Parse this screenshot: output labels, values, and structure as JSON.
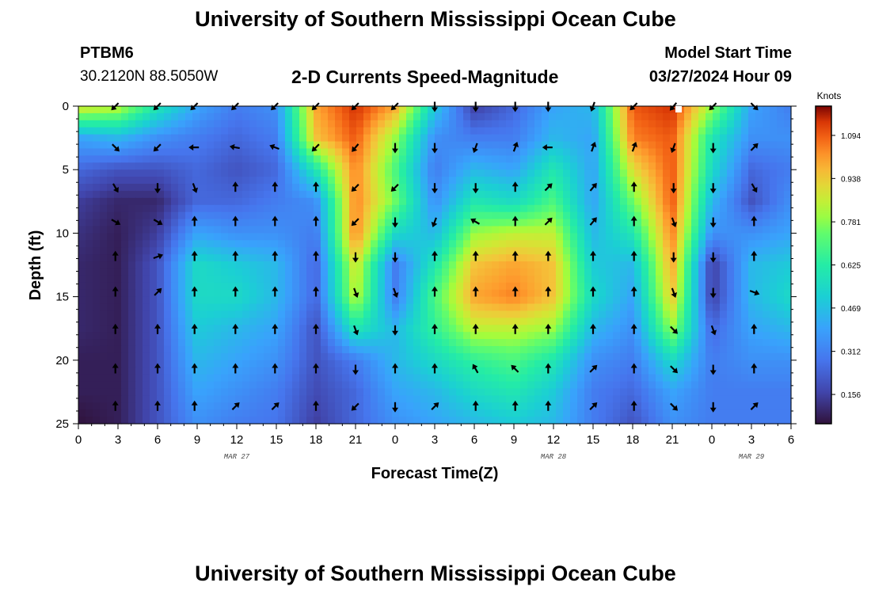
{
  "header": {
    "title": "University of Southern Mississippi Ocean Cube",
    "station_id": "PTBM6",
    "coordinates": "30.2120N  88.5050W",
    "chart_title": "2-D Currents Speed-Magnitude",
    "model_start_label": "Model Start Time",
    "model_start_value": "03/27/2024 Hour 09"
  },
  "footer": {
    "title": "University of Southern Mississippi Ocean Cube"
  },
  "chart_data": {
    "type": "heatmap",
    "title": "2-D Currents Speed-Magnitude",
    "xlabel": "Forecast Time(Z)",
    "ylabel": "Depth (ft)",
    "x_ticks": [
      "0",
      "3",
      "6",
      "9",
      "12",
      "15",
      "18",
      "21",
      "0",
      "3",
      "6",
      "9",
      "12",
      "15",
      "18",
      "21",
      "0",
      "3",
      "6"
    ],
    "x_range_hours": [
      0,
      54
    ],
    "date_labels": [
      {
        "label": "MAR 27",
        "hour": 12
      },
      {
        "label": "MAR 28",
        "hour": 36
      },
      {
        "label": "MAR 29",
        "hour": 51
      }
    ],
    "y_ticks": [
      0,
      5,
      10,
      15,
      20,
      25
    ],
    "ylim": [
      0,
      25
    ],
    "y_inverted": true,
    "colorbar": {
      "title": "Knots",
      "ticks": [
        "1.094",
        "0.938",
        "0.781",
        "0.625",
        "0.469",
        "0.312",
        "0.156"
      ],
      "range": [
        0.05,
        1.2
      ]
    },
    "depths": [
      0,
      2.5,
      5,
      7.5,
      10,
      12.5,
      15,
      17.5,
      20,
      22.5,
      25
    ],
    "time_hours": [
      0,
      3,
      6,
      9,
      12,
      15,
      18,
      21,
      24,
      27,
      30,
      33,
      36,
      39,
      42,
      45,
      48,
      51,
      54
    ],
    "speed_knots": [
      [
        0.9,
        0.85,
        0.6,
        0.4,
        0.3,
        0.35,
        1.0,
        1.15,
        1.0,
        0.5,
        0.15,
        0.25,
        0.4,
        0.45,
        1.1,
        1.15,
        0.8,
        0.4,
        0.3
      ],
      [
        0.4,
        0.45,
        0.35,
        0.3,
        0.25,
        0.3,
        0.95,
        1.1,
        0.8,
        0.35,
        0.3,
        0.3,
        0.45,
        0.4,
        1.05,
        1.1,
        0.6,
        0.35,
        0.35
      ],
      [
        0.25,
        0.2,
        0.2,
        0.25,
        0.2,
        0.25,
        0.6,
        1.05,
        0.7,
        0.3,
        0.45,
        0.4,
        0.6,
        0.4,
        0.9,
        1.1,
        0.55,
        0.25,
        0.3
      ],
      [
        0.15,
        0.1,
        0.1,
        0.25,
        0.25,
        0.3,
        0.35,
        1.05,
        0.75,
        0.35,
        0.6,
        0.55,
        0.7,
        0.4,
        0.75,
        1.1,
        0.45,
        0.2,
        0.35
      ],
      [
        0.12,
        0.08,
        0.15,
        0.4,
        0.35,
        0.35,
        0.3,
        1.05,
        0.55,
        0.45,
        0.8,
        0.85,
        0.85,
        0.45,
        0.6,
        1.05,
        0.35,
        0.35,
        0.4
      ],
      [
        0.1,
        0.08,
        0.2,
        0.55,
        0.5,
        0.45,
        0.25,
        0.9,
        0.3,
        0.6,
        0.95,
        1.0,
        0.95,
        0.5,
        0.45,
        1.0,
        0.15,
        0.45,
        0.5
      ],
      [
        0.1,
        0.08,
        0.2,
        0.55,
        0.55,
        0.45,
        0.25,
        0.85,
        0.3,
        0.7,
        1.0,
        1.05,
        0.95,
        0.55,
        0.4,
        0.95,
        0.15,
        0.45,
        0.55
      ],
      [
        0.1,
        0.08,
        0.2,
        0.5,
        0.45,
        0.4,
        0.2,
        0.6,
        0.45,
        0.65,
        0.85,
        0.85,
        0.8,
        0.45,
        0.35,
        0.8,
        0.25,
        0.4,
        0.45
      ],
      [
        0.08,
        0.08,
        0.2,
        0.45,
        0.4,
        0.35,
        0.2,
        0.3,
        0.45,
        0.55,
        0.65,
        0.7,
        0.6,
        0.35,
        0.3,
        0.55,
        0.3,
        0.35,
        0.35
      ],
      [
        0.08,
        0.08,
        0.2,
        0.4,
        0.35,
        0.3,
        0.18,
        0.25,
        0.4,
        0.45,
        0.55,
        0.6,
        0.5,
        0.3,
        0.25,
        0.4,
        0.3,
        0.3,
        0.3
      ],
      [
        0.05,
        0.08,
        0.2,
        0.35,
        0.3,
        0.28,
        0.15,
        0.25,
        0.35,
        0.4,
        0.45,
        0.5,
        0.45,
        0.3,
        0.2,
        0.35,
        0.3,
        0.3,
        0.3
      ]
    ],
    "arrow_depths": [
      0,
      3.25,
      6.4,
      9.1,
      11.85,
      14.65,
      17.6,
      20.7,
      23.65
    ],
    "arrow_hours": [
      2.8,
      6,
      8.8,
      11.9,
      14.9,
      18,
      21,
      24,
      27,
      30.1,
      33.1,
      35.6,
      39,
      42.1,
      45.1,
      48.1,
      51.2
    ],
    "arrow_dir_deg": [
      [
        225,
        225,
        225,
        225,
        225,
        225,
        225,
        225,
        180,
        180,
        180,
        180,
        200,
        225,
        220,
        225,
        135
      ],
      [
        135,
        225,
        270,
        280,
        290,
        225,
        220,
        180,
        180,
        200,
        20,
        270,
        20,
        20,
        200,
        180,
        45
      ],
      [
        150,
        180,
        160,
        0,
        0,
        0,
        225,
        225,
        180,
        180,
        0,
        45,
        40,
        0,
        180,
        180,
        150
      ],
      [
        120,
        120,
        0,
        0,
        0,
        0,
        225,
        180,
        200,
        300,
        0,
        45,
        40,
        0,
        160,
        180,
        0
      ],
      [
        0,
        70,
        0,
        0,
        0,
        0,
        180,
        180,
        0,
        0,
        0,
        0,
        0,
        0,
        180,
        180,
        0
      ],
      [
        0,
        45,
        0,
        0,
        0,
        0,
        160,
        160,
        0,
        0,
        0,
        0,
        0,
        0,
        160,
        180,
        110
      ],
      [
        0,
        0,
        0,
        0,
        0,
        0,
        160,
        180,
        0,
        0,
        0,
        0,
        0,
        0,
        135,
        160,
        0
      ],
      [
        0,
        0,
        0,
        0,
        0,
        0,
        180,
        0,
        0,
        330,
        315,
        0,
        45,
        0,
        135,
        180,
        0
      ],
      [
        0,
        0,
        0,
        45,
        45,
        0,
        225,
        180,
        45,
        0,
        0,
        0,
        45,
        0,
        135,
        180,
        45
      ]
    ]
  }
}
